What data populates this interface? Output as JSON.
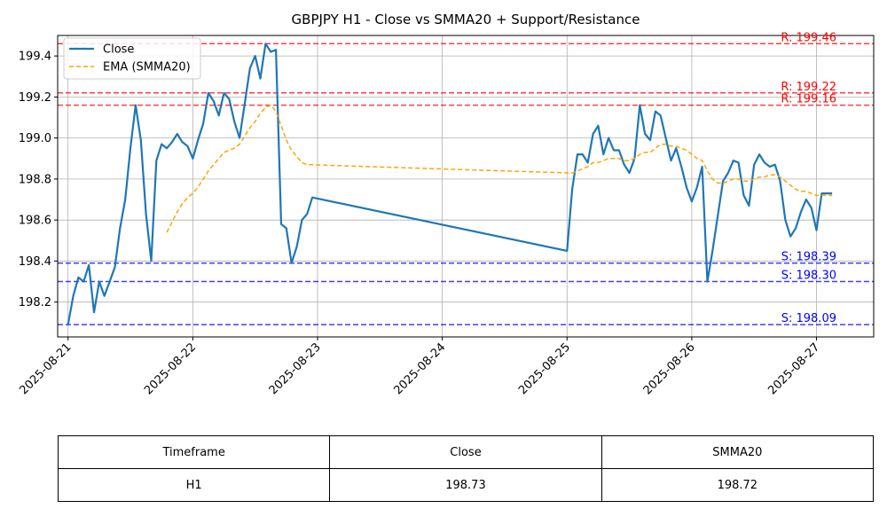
{
  "chart_data": {
    "type": "line",
    "title": "GBPJPY H1 - Close vs SMMA20 + Support/Resistance",
    "xlabel": "",
    "ylabel": "",
    "xlim": [
      "2025-08-20 22:00",
      "2025-08-27 11:00"
    ],
    "ylim": [
      198.03,
      199.5
    ],
    "x_ticks": [
      "2025-08-21",
      "2025-08-22",
      "2025-08-23",
      "2025-08-24",
      "2025-08-25",
      "2025-08-26",
      "2025-08-27"
    ],
    "y_ticks": [
      "198.2",
      "198.4",
      "198.6",
      "198.8",
      "199.0",
      "199.2",
      "199.4"
    ],
    "grid": true,
    "legend_position": "top-left",
    "series": [
      {
        "name": "Close",
        "color": "#1f77b4",
        "style": "solid",
        "points": [
          [
            "2025-08-21 00:00",
            198.09
          ],
          [
            "2025-08-21 01:00",
            198.23
          ],
          [
            "2025-08-21 02:00",
            198.32
          ],
          [
            "2025-08-21 03:00",
            198.3
          ],
          [
            "2025-08-21 04:00",
            198.38
          ],
          [
            "2025-08-21 05:00",
            198.15
          ],
          [
            "2025-08-21 06:00",
            198.3
          ],
          [
            "2025-08-21 07:00",
            198.23
          ],
          [
            "2025-08-21 08:00",
            198.3
          ],
          [
            "2025-08-21 09:00",
            198.37
          ],
          [
            "2025-08-21 10:00",
            198.56
          ],
          [
            "2025-08-21 11:00",
            198.7
          ],
          [
            "2025-08-21 12:00",
            198.95
          ],
          [
            "2025-08-21 13:00",
            199.16
          ],
          [
            "2025-08-21 14:00",
            198.99
          ],
          [
            "2025-08-21 15:00",
            198.63
          ],
          [
            "2025-08-21 16:00",
            198.4
          ],
          [
            "2025-08-21 17:00",
            198.89
          ],
          [
            "2025-08-21 18:00",
            198.97
          ],
          [
            "2025-08-21 19:00",
            198.95
          ],
          [
            "2025-08-21 20:00",
            198.98
          ],
          [
            "2025-08-21 21:00",
            199.02
          ],
          [
            "2025-08-21 22:00",
            198.98
          ],
          [
            "2025-08-21 23:00",
            198.96
          ],
          [
            "2025-08-22 00:00",
            198.9
          ],
          [
            "2025-08-22 01:00",
            198.99
          ],
          [
            "2025-08-22 02:00",
            199.07
          ],
          [
            "2025-08-22 03:00",
            199.22
          ],
          [
            "2025-08-22 04:00",
            199.18
          ],
          [
            "2025-08-22 05:00",
            199.11
          ],
          [
            "2025-08-22 06:00",
            199.22
          ],
          [
            "2025-08-22 07:00",
            199.19
          ],
          [
            "2025-08-22 08:00",
            199.08
          ],
          [
            "2025-08-22 09:00",
            199.0
          ],
          [
            "2025-08-22 10:00",
            199.17
          ],
          [
            "2025-08-22 11:00",
            199.34
          ],
          [
            "2025-08-22 12:00",
            199.4
          ],
          [
            "2025-08-22 13:00",
            199.29
          ],
          [
            "2025-08-22 14:00",
            199.46
          ],
          [
            "2025-08-22 15:00",
            199.42
          ],
          [
            "2025-08-22 16:00",
            199.43
          ],
          [
            "2025-08-22 17:00",
            198.58
          ],
          [
            "2025-08-22 18:00",
            198.56
          ],
          [
            "2025-08-22 19:00",
            198.39
          ],
          [
            "2025-08-22 20:00",
            198.47
          ],
          [
            "2025-08-22 21:00",
            198.6
          ],
          [
            "2025-08-22 22:00",
            198.63
          ],
          [
            "2025-08-22 23:00",
            198.71
          ],
          [
            "2025-08-25 00:00",
            198.45
          ],
          [
            "2025-08-25 01:00",
            198.75
          ],
          [
            "2025-08-25 02:00",
            198.92
          ],
          [
            "2025-08-25 03:00",
            198.92
          ],
          [
            "2025-08-25 04:00",
            198.88
          ],
          [
            "2025-08-25 05:00",
            199.02
          ],
          [
            "2025-08-25 06:00",
            199.06
          ],
          [
            "2025-08-25 07:00",
            198.92
          ],
          [
            "2025-08-25 08:00",
            199.0
          ],
          [
            "2025-08-25 09:00",
            198.94
          ],
          [
            "2025-08-25 10:00",
            198.94
          ],
          [
            "2025-08-25 11:00",
            198.87
          ],
          [
            "2025-08-25 12:00",
            198.83
          ],
          [
            "2025-08-25 13:00",
            198.9
          ],
          [
            "2025-08-25 14:00",
            199.16
          ],
          [
            "2025-08-25 15:00",
            199.02
          ],
          [
            "2025-08-25 16:00",
            198.99
          ],
          [
            "2025-08-25 17:00",
            199.13
          ],
          [
            "2025-08-25 18:00",
            199.11
          ],
          [
            "2025-08-25 19:00",
            199.0
          ],
          [
            "2025-08-25 20:00",
            198.89
          ],
          [
            "2025-08-25 21:00",
            198.95
          ],
          [
            "2025-08-25 22:00",
            198.86
          ],
          [
            "2025-08-25 23:00",
            198.76
          ],
          [
            "2025-08-26 00:00",
            198.69
          ],
          [
            "2025-08-26 01:00",
            198.76
          ],
          [
            "2025-08-26 02:00",
            198.86
          ],
          [
            "2025-08-26 03:00",
            198.3
          ],
          [
            "2025-08-26 04:00",
            198.45
          ],
          [
            "2025-08-26 05:00",
            198.62
          ],
          [
            "2025-08-26 06:00",
            198.79
          ],
          [
            "2025-08-26 07:00",
            198.83
          ],
          [
            "2025-08-26 08:00",
            198.89
          ],
          [
            "2025-08-26 09:00",
            198.88
          ],
          [
            "2025-08-26 10:00",
            198.72
          ],
          [
            "2025-08-26 11:00",
            198.67
          ],
          [
            "2025-08-26 12:00",
            198.87
          ],
          [
            "2025-08-26 13:00",
            198.92
          ],
          [
            "2025-08-26 14:00",
            198.88
          ],
          [
            "2025-08-26 15:00",
            198.86
          ],
          [
            "2025-08-26 16:00",
            198.87
          ],
          [
            "2025-08-26 17:00",
            198.79
          ],
          [
            "2025-08-26 18:00",
            198.6
          ],
          [
            "2025-08-26 19:00",
            198.52
          ],
          [
            "2025-08-26 20:00",
            198.56
          ],
          [
            "2025-08-26 21:00",
            198.64
          ],
          [
            "2025-08-26 22:00",
            198.7
          ],
          [
            "2025-08-26 23:00",
            198.66
          ],
          [
            "2025-08-27 00:00",
            198.55
          ],
          [
            "2025-08-27 01:00",
            198.73
          ],
          [
            "2025-08-27 02:00",
            198.73
          ],
          [
            "2025-08-27 03:00",
            198.73
          ]
        ]
      },
      {
        "name": "EMA (SMMA20)",
        "color": "#ffa500",
        "style": "dashed",
        "points": [
          [
            "2025-08-21 19:00",
            198.54
          ],
          [
            "2025-08-21 20:00",
            198.59
          ],
          [
            "2025-08-21 21:00",
            198.64
          ],
          [
            "2025-08-21 22:00",
            198.68
          ],
          [
            "2025-08-21 23:00",
            198.71
          ],
          [
            "2025-08-22 00:00",
            198.73
          ],
          [
            "2025-08-22 01:00",
            198.76
          ],
          [
            "2025-08-22 02:00",
            198.8
          ],
          [
            "2025-08-22 03:00",
            198.84
          ],
          [
            "2025-08-22 04:00",
            198.87
          ],
          [
            "2025-08-22 05:00",
            198.9
          ],
          [
            "2025-08-22 06:00",
            198.93
          ],
          [
            "2025-08-22 07:00",
            198.94
          ],
          [
            "2025-08-22 08:00",
            198.95
          ],
          [
            "2025-08-22 09:00",
            198.97
          ],
          [
            "2025-08-22 10:00",
            199.01
          ],
          [
            "2025-08-22 11:00",
            199.05
          ],
          [
            "2025-08-22 12:00",
            199.08
          ],
          [
            "2025-08-22 13:00",
            199.12
          ],
          [
            "2025-08-22 14:00",
            199.15
          ],
          [
            "2025-08-22 15:00",
            199.16
          ],
          [
            "2025-08-22 16:00",
            199.13
          ],
          [
            "2025-08-22 17:00",
            199.06
          ],
          [
            "2025-08-22 18:00",
            198.99
          ],
          [
            "2025-08-22 19:00",
            198.94
          ],
          [
            "2025-08-22 20:00",
            198.91
          ],
          [
            "2025-08-22 21:00",
            198.88
          ],
          [
            "2025-08-22 22:00",
            198.87
          ],
          [
            "2025-08-25 00:00",
            198.83
          ],
          [
            "2025-08-25 01:00",
            198.83
          ],
          [
            "2025-08-25 02:00",
            198.84
          ],
          [
            "2025-08-25 03:00",
            198.85
          ],
          [
            "2025-08-25 04:00",
            198.86
          ],
          [
            "2025-08-25 05:00",
            198.88
          ],
          [
            "2025-08-25 06:00",
            198.88
          ],
          [
            "2025-08-25 07:00",
            198.89
          ],
          [
            "2025-08-25 08:00",
            198.9
          ],
          [
            "2025-08-25 09:00",
            198.9
          ],
          [
            "2025-08-25 10:00",
            198.9
          ],
          [
            "2025-08-25 11:00",
            198.89
          ],
          [
            "2025-08-25 12:00",
            198.89
          ],
          [
            "2025-08-25 13:00",
            198.9
          ],
          [
            "2025-08-25 14:00",
            198.92
          ],
          [
            "2025-08-25 15:00",
            198.93
          ],
          [
            "2025-08-25 16:00",
            198.93
          ],
          [
            "2025-08-25 17:00",
            198.95
          ],
          [
            "2025-08-25 18:00",
            198.97
          ],
          [
            "2025-08-25 19:00",
            198.97
          ],
          [
            "2025-08-25 20:00",
            198.96
          ],
          [
            "2025-08-25 21:00",
            198.96
          ],
          [
            "2025-08-25 22:00",
            198.95
          ],
          [
            "2025-08-25 23:00",
            198.94
          ],
          [
            "2025-08-26 00:00",
            198.92
          ],
          [
            "2025-08-26 01:00",
            198.9
          ],
          [
            "2025-08-26 02:00",
            198.89
          ],
          [
            "2025-08-26 03:00",
            198.84
          ],
          [
            "2025-08-26 04:00",
            198.8
          ],
          [
            "2025-08-26 05:00",
            198.78
          ],
          [
            "2025-08-26 06:00",
            198.78
          ],
          [
            "2025-08-26 07:00",
            198.79
          ],
          [
            "2025-08-26 08:00",
            198.8
          ],
          [
            "2025-08-26 09:00",
            198.8
          ],
          [
            "2025-08-26 10:00",
            198.79
          ],
          [
            "2025-08-26 11:00",
            198.79
          ],
          [
            "2025-08-26 12:00",
            198.8
          ],
          [
            "2025-08-26 13:00",
            198.81
          ],
          [
            "2025-08-26 14:00",
            198.81
          ],
          [
            "2025-08-26 15:00",
            198.82
          ],
          [
            "2025-08-26 16:00",
            198.82
          ],
          [
            "2025-08-26 17:00",
            198.81
          ],
          [
            "2025-08-26 18:00",
            198.79
          ],
          [
            "2025-08-26 19:00",
            198.77
          ],
          [
            "2025-08-26 20:00",
            198.75
          ],
          [
            "2025-08-26 21:00",
            198.74
          ],
          [
            "2025-08-26 22:00",
            198.74
          ],
          [
            "2025-08-26 23:00",
            198.73
          ],
          [
            "2025-08-27 00:00",
            198.72
          ],
          [
            "2025-08-27 01:00",
            198.72
          ],
          [
            "2025-08-27 02:00",
            198.72
          ],
          [
            "2025-08-27 03:00",
            198.72
          ]
        ]
      }
    ],
    "resistance_levels": [
      {
        "value": 199.46,
        "label": "R: 199.46"
      },
      {
        "value": 199.22,
        "label": "R: 199.22"
      },
      {
        "value": 199.16,
        "label": "R: 199.16"
      }
    ],
    "support_levels": [
      {
        "value": 198.39,
        "label": "S: 198.39"
      },
      {
        "value": 198.3,
        "label": "S: 198.30"
      },
      {
        "value": 198.09,
        "label": "S: 198.09"
      }
    ],
    "level_colors": {
      "resistance": "#ff0000",
      "support": "#0000ff"
    }
  },
  "table": {
    "headers": [
      "Timeframe",
      "Close",
      "SMMA20"
    ],
    "rows": [
      [
        "H1",
        "198.73",
        "198.72"
      ]
    ]
  }
}
